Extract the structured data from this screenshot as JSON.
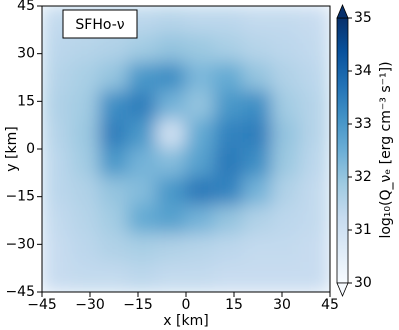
{
  "chart_data": {
    "type": "heatmap",
    "annotation": "SFHo-ν",
    "xlabel": "x [km]",
    "ylabel": "y [km]",
    "colorbar_label": "log₁₀(Q_νₑ [erg cm⁻³ s⁻¹])",
    "x": [
      -40.5,
      -31.5,
      -22.5,
      -13.5,
      -4.5,
      4.5,
      13.5,
      22.5,
      31.5,
      40.5
    ],
    "y": [
      40.5,
      31.5,
      22.5,
      13.5,
      4.5,
      -4.5,
      -13.5,
      -22.5,
      -31.5,
      -40.5
    ],
    "z": [
      [
        31.3,
        31.3,
        31.4,
        31.4,
        31.5,
        31.4,
        31.4,
        31.3,
        31.3,
        31.2
      ],
      [
        31.4,
        31.5,
        31.6,
        31.8,
        32.0,
        31.9,
        31.7,
        31.5,
        31.4,
        31.3
      ],
      [
        31.5,
        31.7,
        32.0,
        33.0,
        33.2,
        32.3,
        32.6,
        32.0,
        31.6,
        31.4
      ],
      [
        31.6,
        31.8,
        33.2,
        33.5,
        32.4,
        32.0,
        33.0,
        33.2,
        31.8,
        31.5
      ],
      [
        31.5,
        31.9,
        33.5,
        33.0,
        31.0,
        32.6,
        33.4,
        33.5,
        32.0,
        31.5
      ],
      [
        31.4,
        31.8,
        33.0,
        32.4,
        32.2,
        32.8,
        33.6,
        33.2,
        31.9,
        31.4
      ],
      [
        31.4,
        31.6,
        32.0,
        32.2,
        33.0,
        33.6,
        33.4,
        32.4,
        31.6,
        31.3
      ],
      [
        31.3,
        31.5,
        31.8,
        32.6,
        32.8,
        32.4,
        32.0,
        31.6,
        31.4,
        31.3
      ],
      [
        31.2,
        31.4,
        31.6,
        31.7,
        31.6,
        31.5,
        31.4,
        31.3,
        31.3,
        31.2
      ],
      [
        31.2,
        31.3,
        31.3,
        31.4,
        31.3,
        31.3,
        31.2,
        31.2,
        31.2,
        31.2
      ]
    ],
    "xlim": [
      -45,
      45
    ],
    "ylim": [
      -45,
      45
    ],
    "zlim": [
      30,
      35
    ],
    "xticks": [
      {
        "value": -45,
        "label": "−45"
      },
      {
        "value": -30,
        "label": "−30"
      },
      {
        "value": -15,
        "label": "−15"
      },
      0,
      15,
      30,
      45
    ],
    "yticks": [
      {
        "value": -45,
        "label": "−45"
      },
      {
        "value": -30,
        "label": "−30"
      },
      {
        "value": -15,
        "label": "−15"
      },
      0,
      15,
      30,
      45
    ],
    "zticks": [
      30,
      31,
      32,
      33,
      34,
      35
    ],
    "colormap": [
      "#f7fbff",
      "#deebf7",
      "#c6dbef",
      "#9ecae1",
      "#6baed6",
      "#4292c6",
      "#2171b5",
      "#08519c",
      "#08306b"
    ]
  }
}
